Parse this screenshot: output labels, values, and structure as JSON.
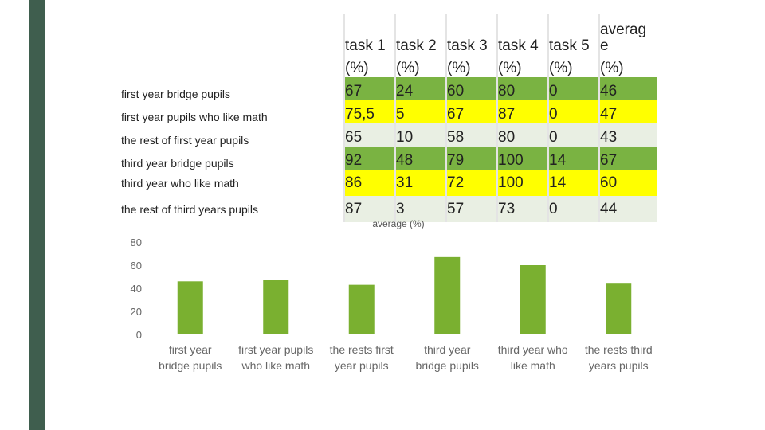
{
  "table": {
    "headers": [
      "task 1",
      "task 2",
      "task 3",
      "task 4",
      "task 5",
      "average"
    ],
    "unit": "(%)",
    "rows": [
      {
        "label": "first year bridge pupils",
        "values": [
          "67",
          "24",
          "60",
          "80",
          "0",
          "46"
        ],
        "style": "green"
      },
      {
        "label": "first year pupils who like math",
        "values": [
          "75,5",
          "5",
          "67",
          "87",
          "0",
          "47"
        ],
        "style": "yellow"
      },
      {
        "label": "the rest of first year pupils",
        "values": [
          "65",
          "10",
          "58",
          "80",
          "0",
          "43"
        ],
        "style": "grey"
      },
      {
        "label": "third year bridge pupils",
        "values": [
          "92",
          "48",
          "79",
          "100",
          "14",
          "67"
        ],
        "style": "green"
      },
      {
        "label": "third year who like math",
        "values": [
          "86",
          "31",
          "72",
          "100",
          "14",
          "60"
        ],
        "style": "yellow"
      },
      {
        "label": "the rest of third years pupils",
        "values": [
          "87",
          "3",
          "57",
          "73",
          "0",
          "44"
        ],
        "style": "grey"
      }
    ]
  },
  "chart_data": {
    "type": "bar",
    "title": "average (%)",
    "categories": [
      [
        "first year",
        "bridge pupils"
      ],
      [
        "first year pupils",
        "who like math"
      ],
      [
        "the rests first",
        "year pupils"
      ],
      [
        "third year",
        "bridge pupils"
      ],
      [
        "third year who",
        "like math"
      ],
      [
        "the rests third",
        "years pupils"
      ]
    ],
    "values": [
      46,
      47,
      43,
      67,
      60,
      44
    ],
    "ylim": [
      0,
      80
    ],
    "yticks": [
      0,
      20,
      40,
      60,
      80
    ],
    "grid": false,
    "color": "#7ab030"
  }
}
